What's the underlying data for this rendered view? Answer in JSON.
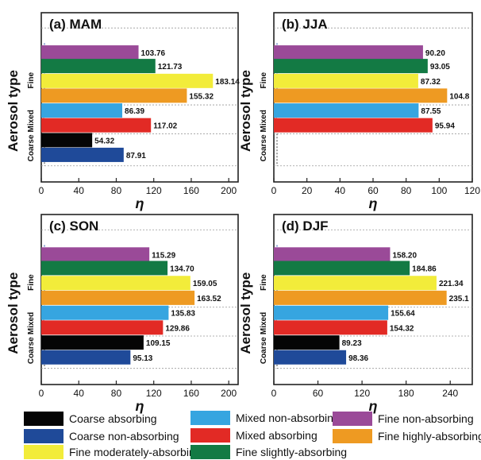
{
  "figure": {
    "ylabel": "Aerosol type",
    "xlabel": "η",
    "group_labels": [
      "Fine",
      "Mixed",
      "Coarse"
    ]
  },
  "legend": {
    "items": [
      {
        "key": "coarse_abs",
        "label": "Coarse absorbing",
        "color": "#050505"
      },
      {
        "key": "coarse_nonabs",
        "label": "Coarse non-absorbing",
        "color": "#1f4a99"
      },
      {
        "key": "fine_mod",
        "label": "Fine moderately-absorbing",
        "color": "#f2ec3a"
      },
      {
        "key": "mixed_nonabs",
        "label": "Mixed non-absorbing",
        "color": "#36a5e0"
      },
      {
        "key": "mixed_abs",
        "label": "Mixed absorbing",
        "color": "#e22a25"
      },
      {
        "key": "fine_slight",
        "label": "Fine slightly-absorbing",
        "color": "#137a44"
      },
      {
        "key": "fine_nonabs",
        "label": "Fine non-absorbing",
        "color": "#9a4a98"
      },
      {
        "key": "fine_high",
        "label": "Fine highly-absorbing",
        "color": "#ee9a22"
      }
    ]
  },
  "chart_data": [
    {
      "type": "bar",
      "orientation": "horizontal",
      "title": "(a) MAM",
      "xlabel": "η",
      "ylabel": "Aerosol type",
      "xlim": [
        0,
        210
      ],
      "xticks": [
        "0",
        "40",
        "80",
        "120",
        "160",
        "200"
      ],
      "categories": [
        "Fine non-absorbing",
        "Fine slightly-absorbing",
        "Fine moderately-absorbing",
        "Fine highly-absorbing",
        "Mixed non-absorbing",
        "Mixed absorbing",
        "Coarse absorbing",
        "Coarse non-absorbing"
      ],
      "values": [
        103.76,
        121.73,
        183.14,
        155.32,
        86.39,
        117.02,
        54.32,
        87.91
      ],
      "labels": [
        "103.76",
        "121.73",
        "183.14",
        "155.32",
        "86.39",
        "117.02",
        "54.32",
        "87.91"
      ]
    },
    {
      "type": "bar",
      "orientation": "horizontal",
      "title": "(b) JJA",
      "xlabel": "η",
      "ylabel": "Aerosol type",
      "xlim": [
        0,
        120
      ],
      "xticks": [
        "0",
        "20",
        "40",
        "60",
        "80",
        "100",
        "120"
      ],
      "categories": [
        "Fine non-absorbing",
        "Fine slightly-absorbing",
        "Fine moderately-absorbing",
        "Fine highly-absorbing",
        "Mixed non-absorbing",
        "Mixed absorbing"
      ],
      "values": [
        90.2,
        93.05,
        87.32,
        104.8,
        87.55,
        95.94
      ],
      "labels": [
        "90.20",
        "93.05",
        "87.32",
        "104.8",
        "87.55",
        "95.94"
      ]
    },
    {
      "type": "bar",
      "orientation": "horizontal",
      "title": "(c) SON",
      "xlabel": "η",
      "ylabel": "Aerosol type",
      "xlim": [
        0,
        210
      ],
      "xticks": [
        "0",
        "40",
        "80",
        "120",
        "160",
        "200"
      ],
      "categories": [
        "Fine non-absorbing",
        "Fine slightly-absorbing",
        "Fine moderately-absorbing",
        "Fine highly-absorbing",
        "Mixed non-absorbing",
        "Mixed absorbing",
        "Coarse absorbing",
        "Coarse non-absorbing"
      ],
      "values": [
        115.29,
        134.7,
        159.05,
        163.52,
        135.83,
        129.86,
        109.15,
        95.13
      ],
      "labels": [
        "115.29",
        "134.70",
        "159.05",
        "163.52",
        "135.83",
        "129.86",
        "109.15",
        "95.13"
      ]
    },
    {
      "type": "bar",
      "orientation": "horizontal",
      "title": "(d) DJF",
      "xlabel": "η",
      "ylabel": "Aerosol type",
      "xlim": [
        0,
        270
      ],
      "xticks": [
        "0",
        "60",
        "120",
        "180",
        "240"
      ],
      "categories": [
        "Fine non-absorbing",
        "Fine slightly-absorbing",
        "Fine moderately-absorbing",
        "Fine highly-absorbing",
        "Mixed non-absorbing",
        "Mixed absorbing",
        "Coarse absorbing",
        "Coarse non-absorbing"
      ],
      "values": [
        158.2,
        184.86,
        221.34,
        235.1,
        155.64,
        154.32,
        89.23,
        98.36
      ],
      "labels": [
        "158.20",
        "184.86",
        "221.34",
        "235.1",
        "155.64",
        "154.32",
        "89.23",
        "98.36"
      ]
    }
  ]
}
